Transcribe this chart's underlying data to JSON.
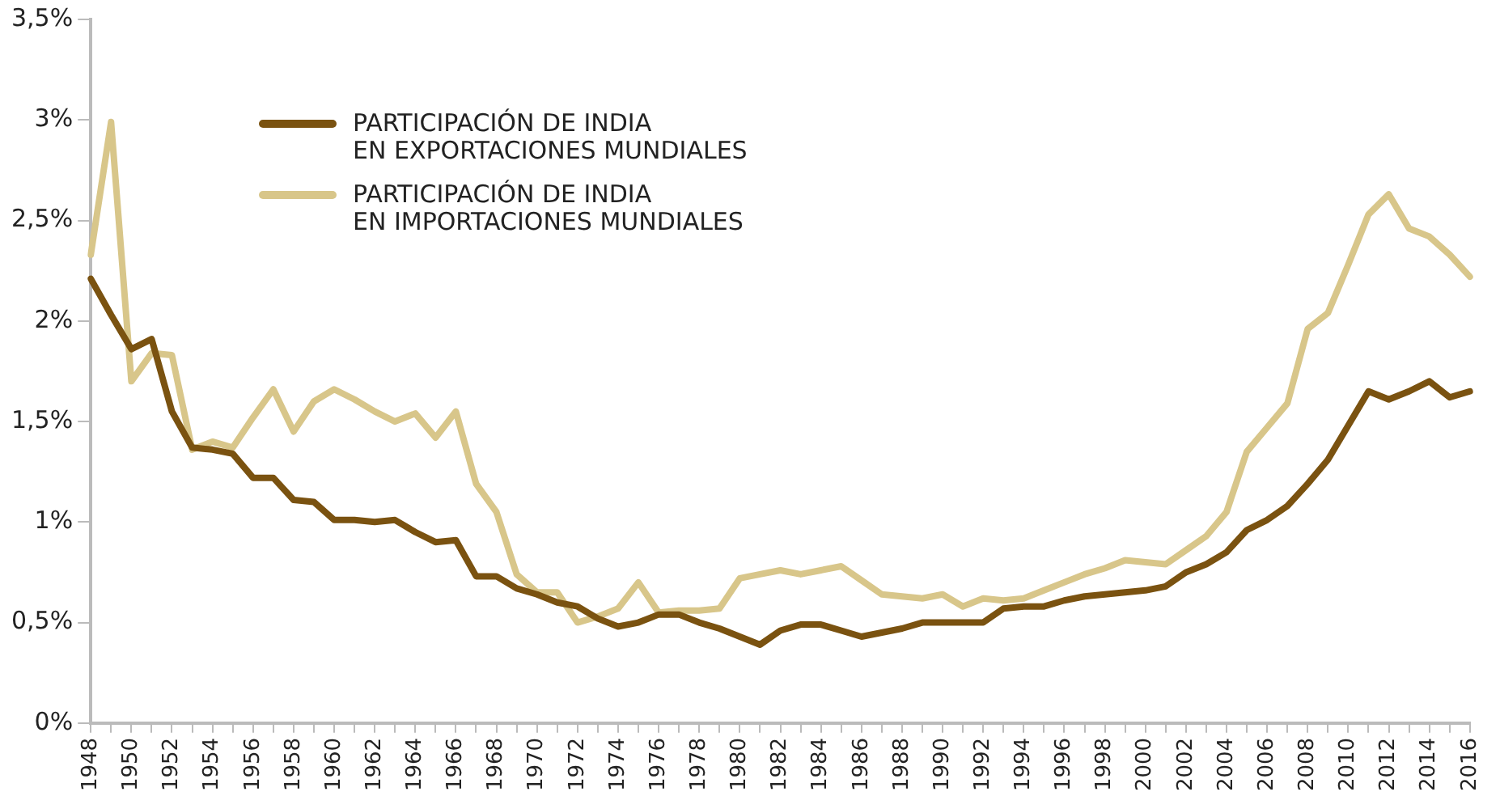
{
  "chart_data": {
    "type": "line",
    "categories": [
      "1948",
      null,
      "1950",
      null,
      "1952",
      null,
      "1954",
      null,
      "1956",
      null,
      "1958",
      null,
      "1960",
      null,
      "1962",
      null,
      "1964",
      null,
      "1966",
      null,
      "1968",
      null,
      "1970",
      null,
      "1972",
      null,
      "1974",
      null,
      "1976",
      null,
      "1978",
      null,
      "1980",
      null,
      "1982",
      null,
      "1984",
      null,
      "1986",
      null,
      "1988",
      null,
      "1990",
      null,
      "1992",
      null,
      "1994",
      null,
      "1996",
      null,
      "1998",
      null,
      "2000",
      null,
      "2002",
      null,
      "2004",
      null,
      "2006",
      null,
      "2008",
      null,
      "2010",
      null,
      "2012",
      null,
      "2014",
      null,
      "2016"
    ],
    "series": [
      {
        "name": "PARTICIPACIÓN DE INDIA\nEN EXPORTACIONES MUNDIALES",
        "color": "#7a5210",
        "values": [
          2.21,
          2.03,
          1.86,
          1.91,
          1.55,
          1.37,
          1.36,
          1.34,
          1.22,
          1.22,
          1.11,
          1.1,
          1.01,
          1.01,
          1.0,
          1.01,
          0.95,
          0.9,
          0.91,
          0.73,
          0.73,
          0.67,
          0.64,
          0.6,
          0.58,
          0.52,
          0.48,
          0.5,
          0.54,
          0.54,
          0.5,
          0.47,
          0.43,
          0.39,
          0.46,
          0.49,
          0.49,
          0.46,
          0.43,
          0.45,
          0.47,
          0.5,
          0.5,
          0.5,
          0.5,
          0.57,
          0.58,
          0.58,
          0.61,
          0.63,
          0.64,
          0.65,
          0.66,
          0.68,
          0.75,
          0.79,
          0.85,
          0.96,
          1.01,
          1.08,
          1.19,
          1.31,
          1.48,
          1.65,
          1.61,
          1.65,
          1.7,
          1.62,
          1.65
        ]
      },
      {
        "name": "PARTICIPACIÓN DE INDIA\nEN IMPORTACIONES MUNDIALES",
        "color": "#d8c68a",
        "values": [
          2.33,
          2.99,
          1.7,
          1.84,
          1.83,
          1.36,
          1.4,
          1.37,
          1.52,
          1.66,
          1.45,
          1.6,
          1.66,
          1.61,
          1.55,
          1.5,
          1.54,
          1.42,
          1.55,
          1.19,
          1.05,
          0.74,
          0.65,
          0.65,
          0.5,
          0.53,
          0.57,
          0.7,
          0.55,
          0.56,
          0.56,
          0.57,
          0.72,
          0.74,
          0.76,
          0.74,
          0.76,
          0.78,
          0.71,
          0.64,
          0.63,
          0.62,
          0.64,
          0.58,
          0.62,
          0.61,
          0.62,
          0.66,
          0.7,
          0.74,
          0.77,
          0.81,
          0.8,
          0.79,
          0.86,
          0.93,
          1.05,
          1.35,
          1.47,
          1.59,
          1.96,
          2.04,
          2.28,
          2.53,
          2.63,
          2.46,
          2.42,
          2.33,
          2.22
        ]
      }
    ],
    "ylim": [
      0,
      3.5
    ],
    "yticks": [
      {
        "value": 0,
        "label": "0%"
      },
      {
        "value": 0.5,
        "label": "0,5%"
      },
      {
        "value": 1,
        "label": "1%"
      },
      {
        "value": 1.5,
        "label": "1,5%"
      },
      {
        "value": 2,
        "label": "2%"
      },
      {
        "value": 2.5,
        "label": "2,5%"
      },
      {
        "value": 3,
        "label": "3%"
      },
      {
        "value": 3.5,
        "label": "3,5%"
      }
    ],
    "grid": false,
    "legend": "top left",
    "marker": "none",
    "line_style": "solid"
  }
}
